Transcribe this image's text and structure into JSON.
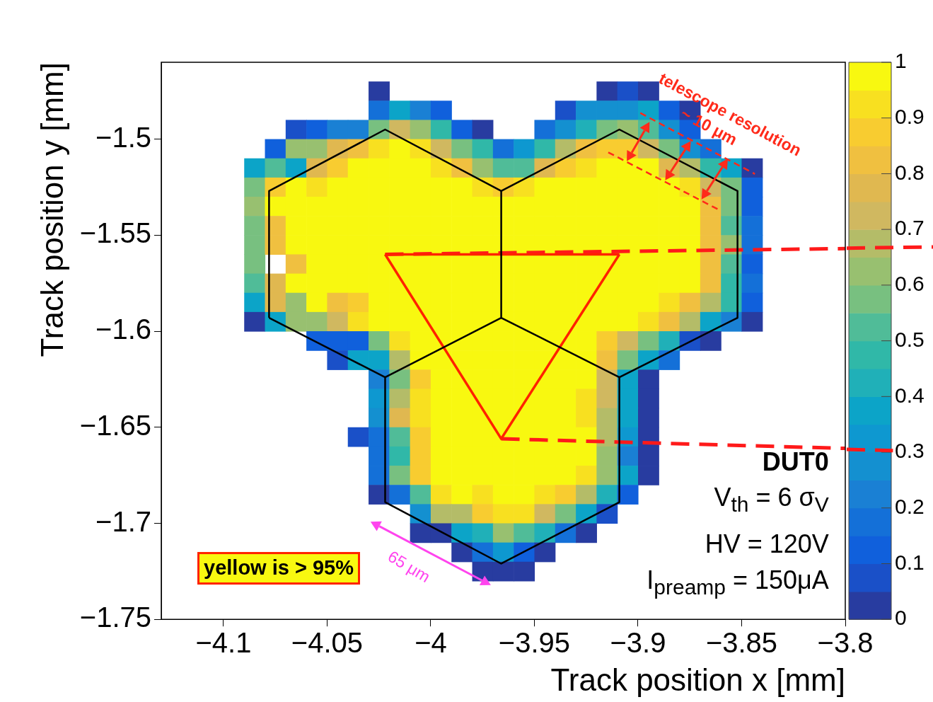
{
  "chart_data": {
    "type": "heatmap",
    "xlabel": "Track position x [mm]",
    "ylabel": "Track position y [mm]",
    "xlim": [
      -4.13,
      -3.8
    ],
    "ylim": [
      -1.75,
      -1.46
    ],
    "xticks": [
      {
        "value": -4.1,
        "label": "−4.1"
      },
      {
        "value": -4.05,
        "label": "−4.05"
      },
      {
        "value": -4,
        "label": "−4"
      },
      {
        "value": -3.95,
        "label": "−3.95"
      },
      {
        "value": -3.9,
        "label": "−3.9"
      },
      {
        "value": -3.85,
        "label": "−3.85"
      },
      {
        "value": -3.8,
        "label": "−3.8"
      }
    ],
    "yticks": [
      {
        "value": -1.75,
        "label": "−1.75"
      },
      {
        "value": -1.7,
        "label": "−1.7"
      },
      {
        "value": -1.65,
        "label": "−1.65"
      },
      {
        "value": -1.6,
        "label": "−1.6"
      },
      {
        "value": -1.55,
        "label": "−1.55"
      },
      {
        "value": -1.5,
        "label": "−1.5"
      }
    ],
    "clim": [
      0,
      1
    ],
    "cticks": [
      0,
      0.1,
      0.2,
      0.3,
      0.4,
      0.5,
      0.6,
      0.7,
      0.8,
      0.9,
      1
    ],
    "x": [
      -4.085,
      -4.075,
      -4.065,
      -4.055,
      -4.045,
      -4.035,
      -4.025,
      -4.015,
      -4.005,
      -3.995,
      -3.985,
      -3.975,
      -3.965,
      -3.955,
      -3.945,
      -3.935,
      -3.925,
      -3.915,
      -3.905,
      -3.895,
      -3.885,
      -3.875,
      -3.865,
      -3.855,
      -3.845
    ],
    "y": [
      -1.475,
      -1.485,
      -1.495,
      -1.505,
      -1.515,
      -1.525,
      -1.535,
      -1.545,
      -1.555,
      -1.565,
      -1.575,
      -1.585,
      -1.595,
      -1.605,
      -1.615,
      -1.625,
      -1.635,
      -1.645,
      -1.655,
      -1.665,
      -1.675,
      -1.685,
      -1.695,
      -1.705,
      -1.715,
      -1.725
    ],
    "cells": [
      [
        null,
        null,
        null,
        null,
        null,
        null,
        0.03,
        null,
        null,
        null,
        null,
        null,
        null,
        null,
        null,
        null,
        null,
        0.03,
        0.08,
        0.03,
        null,
        null,
        null,
        null,
        null
      ],
      [
        null,
        null,
        null,
        null,
        null,
        null,
        0.18,
        0.38,
        0.23,
        0.13,
        null,
        null,
        null,
        null,
        null,
        0.08,
        0.28,
        0.28,
        0.28,
        0.38,
        0.13,
        0.03,
        null,
        null,
        null
      ],
      [
        null,
        null,
        0.08,
        0.13,
        0.23,
        0.23,
        0.58,
        0.73,
        0.63,
        0.48,
        0.13,
        0.03,
        null,
        null,
        0.18,
        0.28,
        0.43,
        0.58,
        0.63,
        0.53,
        0.28,
        0.13,
        null,
        null,
        null
      ],
      [
        null,
        0.13,
        0.63,
        0.63,
        0.78,
        0.83,
        0.93,
        0.98,
        0.93,
        0.73,
        0.58,
        0.48,
        0.18,
        0.33,
        0.48,
        0.68,
        0.83,
        0.88,
        0.88,
        0.73,
        0.58,
        0.28,
        0.18,
        null,
        null
      ],
      [
        0.38,
        0.53,
        0.38,
        0.78,
        0.88,
        0.98,
        0.98,
        0.98,
        0.98,
        0.93,
        0.83,
        0.63,
        0.53,
        0.53,
        0.78,
        0.88,
        0.93,
        0.98,
        0.98,
        0.98,
        0.78,
        0.68,
        0.48,
        0.38,
        0.03
      ],
      [
        0.58,
        0.88,
        0.98,
        0.93,
        0.98,
        0.98,
        0.98,
        0.98,
        0.98,
        0.98,
        0.98,
        0.93,
        0.88,
        0.93,
        0.98,
        0.98,
        0.98,
        0.98,
        0.98,
        0.98,
        0.98,
        0.93,
        0.73,
        0.58,
        0.13
      ],
      [
        0.63,
        0.98,
        0.98,
        0.98,
        0.98,
        0.98,
        0.98,
        0.98,
        0.98,
        0.98,
        0.98,
        0.98,
        0.98,
        0.98,
        0.98,
        0.98,
        0.98,
        0.98,
        0.98,
        0.98,
        0.98,
        0.98,
        0.83,
        0.58,
        0.13
      ],
      [
        0.58,
        0.83,
        0.98,
        0.98,
        0.98,
        0.98,
        0.98,
        0.98,
        0.98,
        0.98,
        0.98,
        0.98,
        0.98,
        0.98,
        0.98,
        0.98,
        0.98,
        0.98,
        0.98,
        0.98,
        0.98,
        0.98,
        0.83,
        0.53,
        0.18
      ],
      [
        0.58,
        0.83,
        0.98,
        0.98,
        0.98,
        0.98,
        0.98,
        0.98,
        0.98,
        0.98,
        0.98,
        0.98,
        0.98,
        0.98,
        0.98,
        0.98,
        0.98,
        0.98,
        0.98,
        0.98,
        0.98,
        0.98,
        0.83,
        0.63,
        0.18
      ],
      [
        0.58,
        null,
        0.83,
        0.98,
        0.98,
        0.98,
        0.98,
        0.98,
        0.98,
        0.98,
        0.98,
        0.98,
        0.98,
        0.98,
        0.98,
        0.98,
        0.98,
        0.98,
        0.98,
        0.98,
        0.98,
        0.98,
        0.83,
        0.53,
        0.13
      ],
      [
        0.53,
        0.78,
        0.98,
        0.98,
        0.98,
        0.98,
        0.98,
        0.98,
        0.98,
        0.98,
        0.98,
        0.98,
        0.98,
        0.98,
        0.98,
        0.98,
        0.98,
        0.98,
        0.98,
        0.98,
        0.98,
        0.98,
        0.83,
        0.48,
        0.18
      ],
      [
        0.38,
        0.78,
        0.63,
        0.98,
        0.83,
        0.88,
        0.98,
        0.98,
        0.98,
        0.98,
        0.98,
        0.98,
        0.98,
        0.98,
        0.98,
        0.98,
        0.98,
        0.98,
        0.98,
        0.98,
        0.93,
        0.83,
        0.68,
        0.48,
        0.13
      ],
      [
        0.03,
        0.38,
        0.63,
        0.63,
        0.73,
        0.93,
        0.98,
        0.98,
        0.98,
        0.98,
        0.98,
        0.98,
        0.98,
        0.98,
        0.98,
        0.98,
        0.98,
        0.98,
        0.98,
        0.93,
        0.83,
        0.68,
        0.38,
        0.23,
        0.03
      ],
      [
        null,
        null,
        null,
        0.13,
        0.13,
        0.13,
        0.58,
        0.93,
        0.98,
        0.98,
        0.98,
        0.98,
        0.98,
        0.98,
        0.98,
        0.98,
        0.98,
        0.88,
        0.73,
        0.58,
        0.43,
        0.08,
        0.03,
        null,
        null
      ],
      [
        null,
        null,
        null,
        null,
        0.08,
        0.38,
        0.38,
        0.68,
        0.98,
        0.98,
        0.98,
        0.98,
        0.98,
        0.98,
        0.98,
        0.98,
        0.98,
        0.83,
        0.58,
        0.38,
        0.18,
        null,
        null,
        null,
        null
      ],
      [
        null,
        null,
        null,
        null,
        null,
        null,
        0.23,
        0.58,
        0.88,
        0.98,
        0.98,
        0.98,
        0.98,
        0.98,
        0.98,
        0.98,
        0.98,
        0.73,
        0.38,
        0.03,
        null,
        null,
        null,
        null,
        null
      ],
      [
        null,
        null,
        null,
        null,
        null,
        null,
        0.33,
        0.68,
        0.93,
        0.98,
        0.98,
        0.98,
        0.98,
        0.98,
        0.98,
        0.98,
        0.93,
        0.73,
        0.38,
        0.03,
        null,
        null,
        null,
        null,
        null
      ],
      [
        null,
        null,
        null,
        null,
        null,
        null,
        0.28,
        0.78,
        0.93,
        0.98,
        0.98,
        0.98,
        0.98,
        0.98,
        0.98,
        0.98,
        0.93,
        0.68,
        0.38,
        0.03,
        null,
        null,
        null,
        null,
        null
      ],
      [
        null,
        null,
        null,
        null,
        null,
        0.08,
        0.18,
        0.53,
        0.88,
        0.98,
        0.98,
        0.98,
        0.98,
        0.98,
        0.98,
        0.98,
        0.98,
        0.68,
        0.33,
        0.03,
        null,
        null,
        null,
        null,
        null
      ],
      [
        null,
        null,
        null,
        null,
        null,
        null,
        0.18,
        0.48,
        0.88,
        0.98,
        0.98,
        0.98,
        0.98,
        0.98,
        0.98,
        0.98,
        0.98,
        0.63,
        0.23,
        0.03,
        null,
        null,
        null,
        null,
        null
      ],
      [
        null,
        null,
        null,
        null,
        null,
        null,
        0.18,
        0.58,
        0.88,
        0.98,
        0.98,
        0.98,
        0.98,
        0.98,
        0.98,
        0.98,
        0.93,
        0.63,
        0.38,
        0.03,
        null,
        null,
        null,
        null,
        null
      ],
      [
        null,
        null,
        null,
        null,
        null,
        null,
        0.03,
        0.18,
        0.53,
        0.93,
        0.98,
        0.93,
        0.98,
        0.98,
        0.93,
        0.88,
        0.68,
        0.43,
        0.13,
        null,
        null,
        null,
        null,
        null,
        null
      ],
      [
        null,
        null,
        null,
        null,
        null,
        null,
        null,
        null,
        0.28,
        0.68,
        0.68,
        0.88,
        0.93,
        0.93,
        0.73,
        0.58,
        0.38,
        0.08,
        null,
        null,
        null,
        null,
        null,
        null,
        null
      ],
      [
        null,
        null,
        null,
        null,
        null,
        null,
        null,
        null,
        0.03,
        0.03,
        0.38,
        0.43,
        0.63,
        0.53,
        0.43,
        0.18,
        0.03,
        null,
        null,
        null,
        null,
        null,
        null,
        null,
        null
      ],
      [
        null,
        null,
        null,
        null,
        null,
        null,
        null,
        null,
        null,
        null,
        0.03,
        0.18,
        0.33,
        0.13,
        0.03,
        null,
        null,
        null,
        null,
        null,
        null,
        null,
        null,
        null,
        null
      ],
      [
        null,
        null,
        null,
        null,
        null,
        null,
        null,
        null,
        null,
        null,
        null,
        0.03,
        0.03,
        0.03,
        null,
        null,
        null,
        null,
        null,
        null,
        null,
        null,
        null,
        null,
        null
      ]
    ],
    "series": [
      {
        "type": "line",
        "color": "#000000",
        "x": [
          -4.078,
          -4.078,
          -4.022,
          -3.966,
          -3.909,
          -3.852,
          -3.852
        ],
        "values": [
          -1.593,
          -1.527,
          -1.495,
          -1.527,
          -1.495,
          -1.527,
          -1.593
        ]
      },
      {
        "type": "line",
        "color": "#000000",
        "x": [
          -4.078,
          -4.022,
          -4.022,
          -3.966,
          -3.909,
          -3.909,
          -3.852
        ],
        "values": [
          -1.593,
          -1.624,
          -1.689,
          -1.721,
          -1.689,
          -1.624,
          -1.593
        ]
      },
      {
        "type": "line",
        "color": "#000000",
        "x": [
          -4.022,
          -3.966,
          -3.966
        ],
        "values": [
          -1.624,
          -1.593,
          -1.527
        ]
      },
      {
        "type": "line",
        "color": "#000000",
        "x": [
          -3.966,
          -3.909
        ],
        "values": [
          -1.593,
          -1.624
        ]
      },
      {
        "type": "line",
        "color": "#ff2200",
        "x": [
          -4.022,
          -3.966,
          -3.909
        ],
        "values": [
          -1.56,
          -1.656,
          -1.56
        ]
      },
      {
        "type": "line",
        "color": "#ff2200",
        "x": [
          -4.022,
          -3.909
        ],
        "values": [
          -1.56,
          -1.56
        ]
      },
      {
        "type": "line",
        "color": "#ff1a1a",
        "line_style": "dashed",
        "x": [
          -4.022,
          -3.8
        ],
        "values": [
          -1.56,
          -1.557
        ]
      },
      {
        "type": "line",
        "color": "#ff1a1a",
        "line_style": "dashed",
        "x": [
          -3.966,
          -3.8
        ],
        "values": [
          -1.656,
          -1.661
        ]
      }
    ],
    "annotations": [
      "DUT0",
      "V$_{th}$ = 6 σ$_{V}$",
      "HV = 120V",
      "I$_{preamp}$ = 150μA",
      "yellow is > 95%",
      "65 μm",
      "telescope resolution",
      "~ 10 μm"
    ]
  }
}
